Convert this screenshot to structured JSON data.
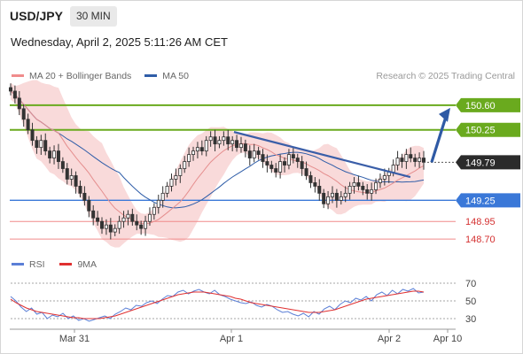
{
  "header": {
    "pair": "USD/JPY",
    "timeframe": "30 MIN",
    "datetime": "Wednesday, April 2, 2025 5:11:26 AM CET",
    "credit": "Research © 2025 Trading Central"
  },
  "legend_main": [
    {
      "label": "MA 20 + Bollinger Bands",
      "color": "#f08c8c"
    },
    {
      "label": "MA 50",
      "color": "#2f5da8"
    }
  ],
  "legend_rsi": [
    {
      "label": "RSI",
      "color": "#5b7fd6"
    },
    {
      "label": "9MA",
      "color": "#e03030"
    }
  ],
  "colors": {
    "resistance": "#6aaa1e",
    "support": "#3a78d8",
    "support_minor": "#f08a8a",
    "band_fill": "#f8d4d4",
    "ma50": "#2f5da8",
    "ma20": "#e58e8e",
    "trendline": "#3a5ea8",
    "arrow": "#2f5aa5",
    "candle": "#333333",
    "current_label_bg": "#2b2b2b"
  },
  "chart_data": [
    {
      "type": "candlestick",
      "title": "USD/JPY",
      "timeframe": "30 MIN",
      "x_ticks": [
        "Mar 31",
        "Apr 1",
        "Apr 2",
        "Apr 10"
      ],
      "ylim": [
        148.45,
        150.9
      ],
      "current_price": 149.79,
      "levels": [
        {
          "value": 150.6,
          "label": "150.60",
          "kind": "resistance",
          "style": "boxed"
        },
        {
          "value": 150.25,
          "label": "150.25",
          "kind": "resistance",
          "style": "boxed"
        },
        {
          "value": 149.25,
          "label": "149.25",
          "kind": "support",
          "style": "boxed"
        },
        {
          "value": 148.95,
          "label": "148.95",
          "kind": "support_minor",
          "style": "text"
        },
        {
          "value": 148.7,
          "label": "148.70",
          "kind": "support_minor",
          "style": "text"
        }
      ],
      "series": [
        {
          "name": "MA 20",
          "role": "ma20"
        },
        {
          "name": "MA 50",
          "role": "ma50"
        }
      ],
      "candles_close": [
        150.8,
        150.7,
        150.55,
        150.4,
        150.25,
        150.1,
        150.0,
        150.1,
        149.95,
        149.85,
        149.95,
        149.8,
        149.7,
        149.55,
        149.6,
        149.45,
        149.35,
        149.25,
        149.1,
        149.0,
        148.95,
        148.85,
        148.9,
        148.8,
        148.85,
        148.95,
        149.0,
        149.05,
        148.95,
        148.9,
        148.85,
        148.95,
        149.05,
        149.15,
        149.25,
        149.35,
        149.45,
        149.55,
        149.6,
        149.7,
        149.8,
        149.9,
        149.95,
        150.0,
        149.95,
        150.1,
        150.15,
        150.05,
        150.1,
        150.15,
        150.05,
        150.1,
        150.0,
        150.05,
        149.95,
        149.85,
        149.95,
        149.9,
        149.8,
        149.75,
        149.7,
        149.65,
        149.8,
        149.75,
        149.9,
        149.85,
        149.8,
        149.7,
        149.6,
        149.5,
        149.45,
        149.35,
        149.2,
        149.3,
        149.35,
        149.25,
        149.3,
        149.35,
        149.45,
        149.5,
        149.45,
        149.4,
        149.35,
        149.4,
        149.5,
        149.55,
        149.6,
        149.65,
        149.75,
        149.85,
        149.8,
        149.9,
        149.85,
        149.8,
        149.85,
        149.79
      ],
      "trendline": {
        "from": [
          0.0,
          150.22
        ],
        "to": [
          1.0,
          149.58
        ],
        "from_bar": 53,
        "to_bar": 96
      },
      "arrow": {
        "from_bar": 96,
        "from": 149.79,
        "to": 150.6
      }
    },
    {
      "type": "line",
      "title": "RSI",
      "ylim": [
        20,
        80
      ],
      "y_ticks": [
        70,
        50,
        30
      ],
      "series": [
        {
          "name": "RSI",
          "values": [
            55,
            50,
            43,
            38,
            42,
            35,
            37,
            30,
            34,
            32,
            36,
            30,
            33,
            28,
            30,
            27,
            29,
            31,
            33,
            30,
            35,
            38,
            42,
            40,
            45,
            44,
            48,
            50,
            47,
            52,
            56,
            55,
            60,
            62,
            58,
            61,
            63,
            60,
            58,
            62,
            57,
            55,
            52,
            50,
            48,
            47,
            49,
            45,
            43,
            46,
            44,
            40,
            37,
            38,
            35,
            33,
            36,
            32,
            38,
            35,
            41,
            44,
            40,
            46,
            50,
            48,
            53,
            51,
            55,
            50,
            57,
            60,
            56,
            62,
            58,
            63,
            61,
            64,
            59,
            60
          ]
        },
        {
          "name": "9MA",
          "values": [
            52,
            48,
            45,
            42,
            40,
            38,
            37,
            36,
            35,
            34,
            33,
            32,
            31,
            31,
            30,
            30,
            30,
            30,
            31,
            32,
            33,
            35,
            37,
            39,
            41,
            43,
            45,
            47,
            49,
            51,
            53,
            55,
            57,
            58,
            59,
            60,
            60,
            60,
            59,
            58,
            57,
            56,
            55,
            53,
            52,
            50,
            48,
            47,
            46,
            45,
            44,
            43,
            42,
            41,
            40,
            39,
            38,
            37,
            37,
            37,
            38,
            39,
            40,
            42,
            44,
            46,
            48,
            50,
            52,
            53,
            54,
            55,
            56,
            57,
            58,
            59,
            60,
            61,
            61,
            60
          ]
        }
      ]
    }
  ]
}
